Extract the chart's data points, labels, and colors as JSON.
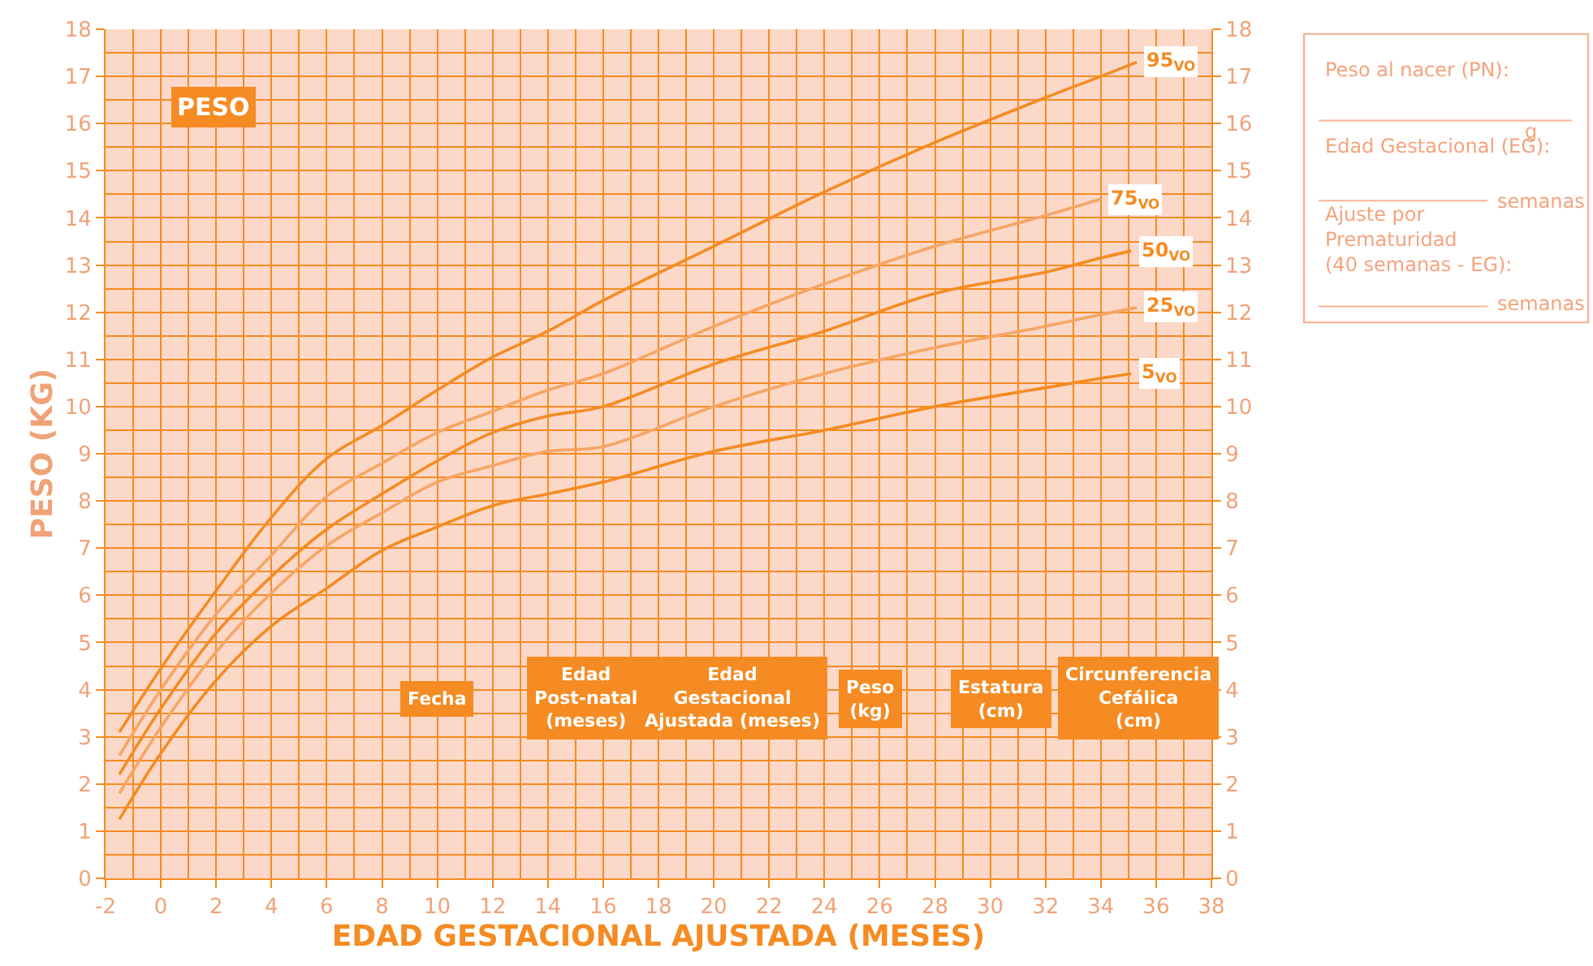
{
  "chart_data": {
    "type": "line",
    "title": "PESO",
    "xlabel": "EDAD GESTACIONAL AJUSTADA (MESES)",
    "ylabel": "PESO (KG)",
    "x": [
      -1.5,
      0,
      2,
      4,
      6,
      8,
      10,
      12,
      14,
      16,
      20,
      24,
      28,
      32,
      34
    ],
    "series": [
      {
        "name": "95$_{VO}$",
        "color": "#f58b22",
        "x": [
          -1.5,
          0,
          2,
          4,
          6,
          8,
          10,
          12,
          14,
          16,
          20,
          24,
          28,
          32,
          34,
          35.3
        ],
        "values": [
          3.1,
          4.45,
          6.1,
          7.65,
          8.9,
          9.6,
          10.35,
          11.05,
          11.6,
          12.25,
          13.4,
          14.55,
          15.6,
          16.55,
          17.0,
          17.3
        ]
      },
      {
        "name": "75$_{VO}$",
        "color": "#f7a564",
        "values": [
          2.6,
          4.0,
          5.6,
          6.85,
          8.1,
          8.8,
          9.45,
          9.9,
          10.35,
          10.7,
          11.7,
          12.6,
          13.4,
          14.05,
          14.4
        ]
      },
      {
        "name": "50$_{VO}$",
        "color": "#f58b22",
        "x": [
          -1.5,
          0,
          2,
          4,
          6,
          8,
          10,
          12,
          14,
          16,
          20,
          24,
          28,
          32,
          34,
          35.1
        ],
        "values": [
          2.2,
          3.6,
          5.2,
          6.4,
          7.4,
          8.15,
          8.85,
          9.45,
          9.8,
          10.0,
          10.9,
          11.6,
          12.4,
          12.85,
          13.15,
          13.3
        ]
      },
      {
        "name": "25$_{VO}$",
        "color": "#f7a564",
        "x": [
          -1.5,
          0,
          2,
          4,
          6,
          8,
          10,
          12,
          14,
          16,
          20,
          24,
          28,
          32,
          34,
          35.3
        ],
        "values": [
          1.8,
          3.2,
          4.8,
          6.05,
          7.05,
          7.75,
          8.4,
          8.75,
          9.05,
          9.15,
          10.0,
          10.7,
          11.25,
          11.7,
          11.95,
          12.1
        ]
      },
      {
        "name": "5$_{VO}$",
        "color": "#f58b22",
        "x": [
          -1.5,
          0,
          2,
          4,
          6,
          8,
          10,
          12,
          14,
          16,
          20,
          24,
          28,
          32,
          34,
          35.1
        ],
        "values": [
          1.25,
          2.65,
          4.2,
          5.35,
          6.15,
          6.95,
          7.45,
          7.9,
          8.15,
          8.4,
          9.05,
          9.5,
          10.0,
          10.4,
          10.6,
          10.7
        ]
      }
    ],
    "xlim": [
      -2,
      38
    ],
    "xticks": [
      -2,
      0,
      2,
      4,
      6,
      8,
      10,
      12,
      14,
      16,
      18,
      20,
      22,
      24,
      26,
      28,
      30,
      32,
      34,
      36,
      38
    ],
    "ylim": [
      0,
      18
    ],
    "yticks": [
      0,
      1,
      2,
      3,
      4,
      5,
      6,
      7,
      8,
      9,
      10,
      11,
      12,
      13,
      14,
      15,
      16,
      17,
      18
    ],
    "y2lim": [
      0,
      18
    ],
    "y2ticks": [
      0,
      1,
      2,
      3,
      4,
      5,
      6,
      7,
      8,
      9,
      10,
      11,
      12,
      13,
      14,
      15,
      16,
      17,
      18
    ],
    "grid": true,
    "legend": false,
    "marker": "none",
    "line_style": "solid",
    "annotations": [
      "Fecha",
      "Edad\nPost-natal\n(meses)",
      "Edad\nGestacional\nAjustada (meses)",
      "Peso\n(kg)",
      "Estatura\n(cm)",
      "Circunferencia\nCefálica\n(cm)",
      "Peso al nacer (PN):",
      "g",
      "Edad Gestacional (EG):",
      "semanas",
      "Ajuste por\nPrematuridad\n(40 semanas - EG):",
      "semanas"
    ]
  }
}
